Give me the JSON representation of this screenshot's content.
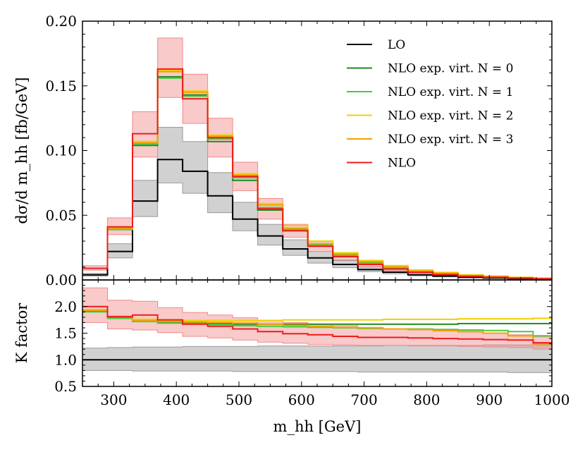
{
  "chart_data": [
    {
      "type": "line",
      "panel": "main",
      "step": true,
      "xlabel": "m_hh [GeV]",
      "ylabel": "dσ/d m_hh [fb/GeV]",
      "xlim": [
        250,
        1000
      ],
      "ylim": [
        0,
        0.2
      ],
      "yticks": [
        "0.00",
        "0.05",
        "0.10",
        "0.15",
        "0.20"
      ],
      "grid": false,
      "legend_position": "top-right",
      "bin_edges": [
        250,
        290,
        330,
        370,
        410,
        450,
        490,
        530,
        570,
        610,
        650,
        690,
        730,
        770,
        810,
        850,
        890,
        930,
        970,
        1000
      ],
      "series": [
        {
          "name": "LO",
          "color": "#000000",
          "values": [
            0.004,
            0.022,
            0.061,
            0.093,
            0.084,
            0.065,
            0.047,
            0.034,
            0.024,
            0.017,
            0.012,
            0.008,
            0.006,
            0.004,
            0.003,
            0.002,
            0.0015,
            0.001,
            0.0007
          ],
          "band_low": [
            0.003,
            0.017,
            0.049,
            0.075,
            0.067,
            0.052,
            0.038,
            0.027,
            0.019,
            0.013,
            0.0095,
            0.0064,
            0.0048,
            0.0032,
            0.0024,
            0.0016,
            0.0012,
            0.0008,
            0.0005
          ],
          "band_high": [
            0.005,
            0.028,
            0.077,
            0.118,
            0.107,
            0.083,
            0.06,
            0.043,
            0.031,
            0.022,
            0.015,
            0.01,
            0.0076,
            0.0051,
            0.0038,
            0.0025,
            0.0019,
            0.0013,
            0.0009
          ],
          "band_color": "#9a9a9a"
        },
        {
          "name": "NLO exp. virt. N = 0",
          "color": "#1f8a1f",
          "values": [
            0.009,
            0.039,
            0.104,
            0.157,
            0.143,
            0.107,
            0.077,
            0.054,
            0.038,
            0.027,
            0.019,
            0.013,
            0.01,
            0.0068,
            0.0051,
            0.0034,
            0.0026,
            0.0017,
            0.0012
          ]
        },
        {
          "name": "NLO exp. virt. N = 1",
          "color": "#44cc44",
          "values": [
            0.009,
            0.039,
            0.105,
            0.156,
            0.142,
            0.109,
            0.079,
            0.056,
            0.039,
            0.027,
            0.019,
            0.013,
            0.0095,
            0.0065,
            0.0048,
            0.0032,
            0.0024,
            0.0015,
            0.001
          ]
        },
        {
          "name": "NLO exp. virt. N = 2",
          "color": "#f0d000",
          "values": [
            0.009,
            0.04,
            0.107,
            0.162,
            0.146,
            0.112,
            0.082,
            0.059,
            0.042,
            0.03,
            0.021,
            0.015,
            0.011,
            0.0077,
            0.0058,
            0.0039,
            0.003,
            0.002,
            0.0014
          ]
        },
        {
          "name": "NLO exp. virt. N = 3",
          "color": "#f5a000",
          "values": [
            0.009,
            0.04,
            0.106,
            0.161,
            0.145,
            0.111,
            0.081,
            0.058,
            0.04,
            0.028,
            0.02,
            0.014,
            0.01,
            0.007,
            0.0052,
            0.0035,
            0.0026,
            0.0017,
            0.0011
          ]
        },
        {
          "name": "NLO",
          "color": "#ee1c1c",
          "values": [
            0.009,
            0.041,
            0.113,
            0.163,
            0.14,
            0.11,
            0.08,
            0.055,
            0.038,
            0.026,
            0.018,
            0.012,
            0.0085,
            0.006,
            0.0042,
            0.0028,
            0.002,
            0.0014,
            0.0009
          ],
          "band_low": [
            0.0076,
            0.035,
            0.095,
            0.141,
            0.121,
            0.095,
            0.069,
            0.047,
            0.033,
            0.022,
            0.0155,
            0.0103,
            0.0073,
            0.0052,
            0.0036,
            0.0024,
            0.0017,
            0.0012,
            0.0008
          ],
          "band_high": [
            0.011,
            0.048,
            0.13,
            0.187,
            0.159,
            0.125,
            0.091,
            0.063,
            0.043,
            0.03,
            0.021,
            0.014,
            0.0097,
            0.0069,
            0.0048,
            0.0032,
            0.0023,
            0.0016,
            0.001
          ],
          "band_color": "#f08a8a"
        }
      ]
    },
    {
      "type": "line",
      "panel": "ratio",
      "step": true,
      "xlabel": "m_hh [GeV]",
      "ylabel": "K factor",
      "xlim": [
        250,
        1000
      ],
      "ylim": [
        0.5,
        2.5
      ],
      "xticks": [
        "300",
        "400",
        "500",
        "600",
        "700",
        "800",
        "900",
        "1000"
      ],
      "yticks": [
        "0.5",
        "1.0",
        "1.5",
        "2.0"
      ],
      "grid": false,
      "bin_edges": [
        250,
        290,
        330,
        370,
        410,
        450,
        490,
        530,
        570,
        610,
        650,
        690,
        730,
        770,
        810,
        850,
        890,
        930,
        970,
        1000
      ],
      "series": [
        {
          "name": "LO",
          "color": "#000000",
          "values": [
            1.0,
            1.0,
            1.0,
            1.0,
            1.0,
            1.0,
            1.0,
            1.0,
            1.0,
            1.0,
            1.0,
            1.0,
            1.0,
            1.0,
            1.0,
            1.0,
            1.0,
            1.0,
            1.0
          ],
          "band_low": [
            0.8,
            0.8,
            0.79,
            0.79,
            0.79,
            0.79,
            0.78,
            0.78,
            0.78,
            0.78,
            0.78,
            0.77,
            0.77,
            0.77,
            0.77,
            0.77,
            0.77,
            0.76,
            0.76
          ],
          "band_high": [
            1.22,
            1.23,
            1.24,
            1.24,
            1.25,
            1.25,
            1.25,
            1.26,
            1.26,
            1.26,
            1.26,
            1.26,
            1.27,
            1.27,
            1.27,
            1.27,
            1.28,
            1.28,
            1.28
          ],
          "band_color": "#9a9a9a"
        },
        {
          "name": "NLO exp. virt. N = 0",
          "color": "#1f8a1f",
          "values": [
            1.92,
            1.8,
            1.74,
            1.7,
            1.69,
            1.68,
            1.67,
            1.67,
            1.67,
            1.67,
            1.67,
            1.67,
            1.67,
            1.67,
            1.67,
            1.68,
            1.68,
            1.68,
            1.68
          ]
        },
        {
          "name": "NLO exp. virt. N = 1",
          "color": "#44cc44",
          "values": [
            1.9,
            1.78,
            1.72,
            1.69,
            1.68,
            1.66,
            1.64,
            1.63,
            1.62,
            1.61,
            1.6,
            1.59,
            1.58,
            1.58,
            1.57,
            1.56,
            1.55,
            1.53,
            1.45
          ]
        },
        {
          "name": "NLO exp. virt. N = 2",
          "color": "#f0d000",
          "values": [
            1.94,
            1.82,
            1.76,
            1.74,
            1.74,
            1.74,
            1.74,
            1.74,
            1.75,
            1.75,
            1.75,
            1.75,
            1.76,
            1.76,
            1.76,
            1.77,
            1.77,
            1.77,
            1.78
          ]
        },
        {
          "name": "NLO exp. virt. N = 3",
          "color": "#f5a000",
          "values": [
            1.93,
            1.81,
            1.74,
            1.72,
            1.71,
            1.7,
            1.69,
            1.67,
            1.65,
            1.63,
            1.61,
            1.6,
            1.58,
            1.57,
            1.55,
            1.53,
            1.5,
            1.45,
            1.3
          ]
        },
        {
          "name": "NLO",
          "color": "#ee1c1c",
          "values": [
            2.0,
            1.81,
            1.84,
            1.75,
            1.67,
            1.63,
            1.58,
            1.53,
            1.49,
            1.47,
            1.44,
            1.42,
            1.42,
            1.41,
            1.4,
            1.39,
            1.38,
            1.37,
            1.32
          ],
          "band_low": [
            1.7,
            1.58,
            1.56,
            1.51,
            1.44,
            1.41,
            1.37,
            1.33,
            1.31,
            1.29,
            1.28,
            1.27,
            1.27,
            1.26,
            1.26,
            1.25,
            1.24,
            1.23,
            1.2
          ],
          "band_high": [
            2.35,
            2.12,
            2.1,
            1.98,
            1.89,
            1.84,
            1.79,
            1.74,
            1.7,
            1.67,
            1.64,
            1.61,
            1.58,
            1.56,
            1.54,
            1.52,
            1.5,
            1.47,
            1.43
          ],
          "band_color": "#f08a8a"
        }
      ]
    }
  ]
}
